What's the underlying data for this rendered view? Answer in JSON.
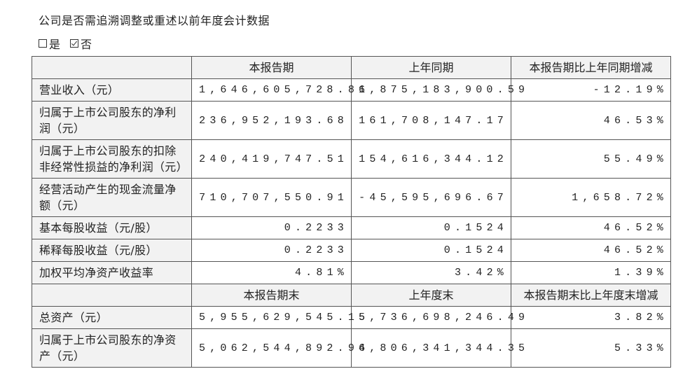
{
  "title": "公司是否需追溯调整或重述以前年度会计数据",
  "options": [
    {
      "label": "是",
      "checked": false
    },
    {
      "label": "否",
      "checked": true
    }
  ],
  "table": {
    "sections": [
      {
        "header": [
          "本报告期",
          "上年同期",
          "本报告期比上年同期增减"
        ],
        "rows": [
          {
            "label": "营业收入（元）",
            "cells": [
              "1,646,605,728.86",
              "1,875,183,900.59",
              "-12.19%"
            ]
          },
          {
            "label": "归属于上市公司股东的净利润（元）",
            "cells": [
              "236,952,193.68",
              "161,708,147.17",
              "46.53%"
            ]
          },
          {
            "label": "归属于上市公司股东的扣除非经常性损益的净利润（元）",
            "cells": [
              "240,419,747.51",
              "154,616,344.12",
              "55.49%"
            ]
          },
          {
            "label": "经营活动产生的现金流量净额（元）",
            "cells": [
              "710,707,550.91",
              "-45,595,696.67",
              "1,658.72%"
            ]
          },
          {
            "label": "基本每股收益（元/股）",
            "cells": [
              "0.2233",
              "0.1524",
              "46.52%"
            ]
          },
          {
            "label": "稀释每股收益（元/股）",
            "cells": [
              "0.2233",
              "0.1524",
              "46.52%"
            ]
          },
          {
            "label": "加权平均净资产收益率",
            "cells": [
              "4.81%",
              "3.42%",
              "1.39%"
            ]
          }
        ]
      },
      {
        "header": [
          "本报告期末",
          "上年度末",
          "本报告期末比上年度末增减"
        ],
        "rows": [
          {
            "label": "总资产（元）",
            "cells": [
              "5,955,629,545.15",
              "5,736,698,246.49",
              "3.82%"
            ]
          },
          {
            "label": "归属于上市公司股东的净资产（元）",
            "cells": [
              "5,062,544,892.96",
              "4,806,341,344.35",
              "5.33%"
            ]
          }
        ]
      }
    ]
  }
}
